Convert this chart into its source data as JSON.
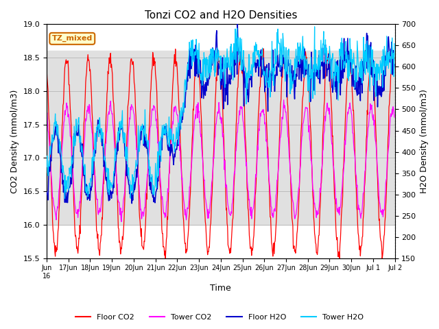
{
  "title": "Tonzi CO2 and H2O Densities",
  "xlabel": "Time",
  "ylabel_left": "CO2 Density (mmol/m3)",
  "ylabel_right": "H2O Density (mmol/m3)",
  "co2_ylim": [
    15.5,
    19.0
  ],
  "h2o_ylim": [
    150,
    700
  ],
  "annotation_text": "TZ_mixed",
  "annotation_color": "#cc6600",
  "annotation_bg": "#ffffcc",
  "floor_co2_color": "#ff0000",
  "tower_co2_color": "#ff00ff",
  "floor_h2o_color": "#0000cc",
  "tower_h2o_color": "#00ccff",
  "legend_labels": [
    "Floor CO2",
    "Tower CO2",
    "Floor H2O",
    "Tower H2O"
  ],
  "grid_color": "#bbbbbb",
  "bg_band_ylim": [
    16.0,
    18.6
  ],
  "bg_band_color": "#e0e0e0",
  "yticks_left": [
    15.5,
    16.0,
    16.5,
    17.0,
    17.5,
    18.0,
    18.5,
    19.0
  ],
  "yticks_right": [
    150,
    200,
    250,
    300,
    350,
    400,
    450,
    500,
    550,
    600,
    650,
    700
  ],
  "n_days": 16,
  "seed": 42
}
